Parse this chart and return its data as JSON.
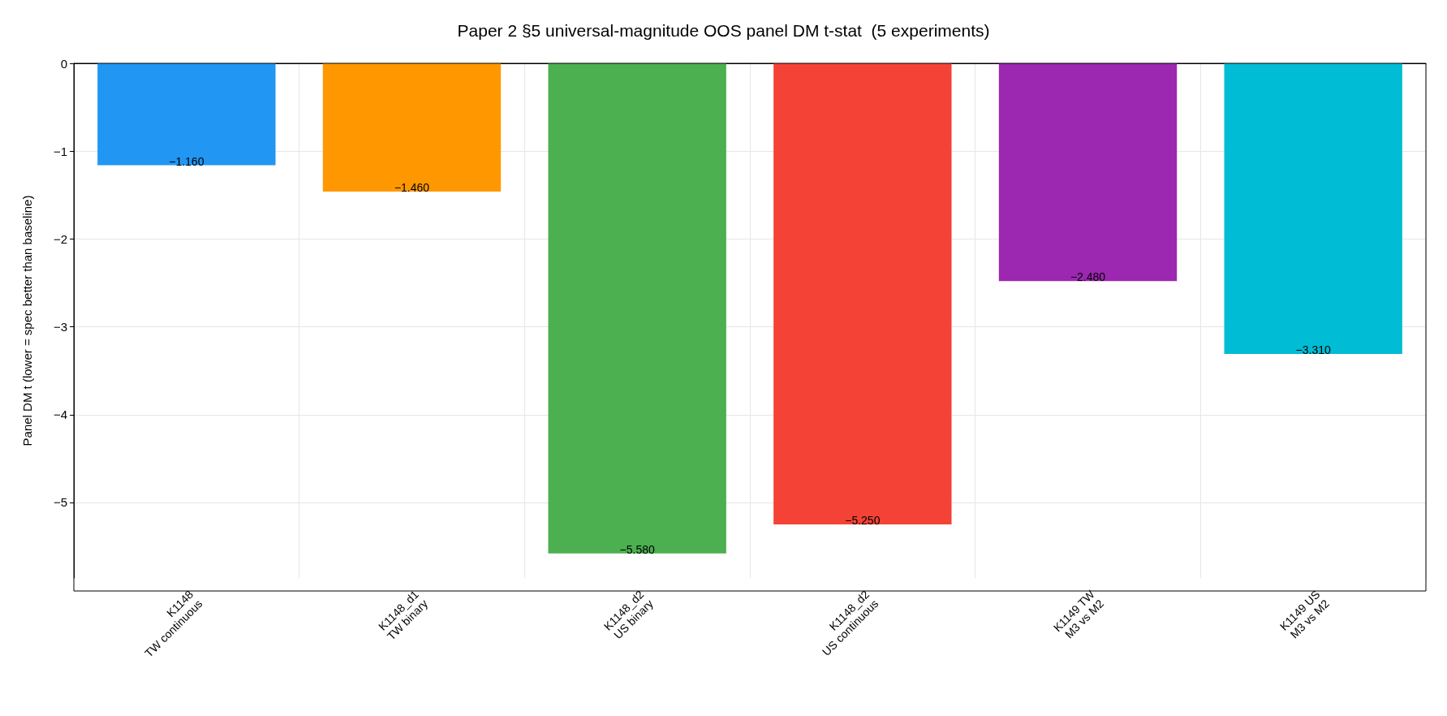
{
  "chart_data": {
    "type": "bar",
    "title": "Paper 2 §5 universal-magnitude OOS panel DM t-stat  (5 experiments)",
    "ylabel": "Panel DM t (lower = spec better than baseline)",
    "categories": [
      "K1148\nTW continuous",
      "K1148_d1\nTW binary",
      "K1148_d2\nUS binary",
      "K1148_d2\nUS continuous",
      "K1149 TW\nM3 vs M2",
      "K1149 US\nM3 vs M2"
    ],
    "values": [
      -1.16,
      -1.46,
      -5.58,
      -5.25,
      -2.48,
      -3.31
    ],
    "colors": [
      "#2196f3",
      "#ff9800",
      "#4caf50",
      "#f44336",
      "#9c27b0",
      "#00bcd4"
    ],
    "value_labels": [
      "−1.160",
      "−1.460",
      "−5.580",
      "−5.250",
      "−2.480",
      "−3.310"
    ],
    "ylim": [
      -5.86,
      0
    ],
    "yticks": [
      {
        "value": -5,
        "label": "−5"
      },
      {
        "value": -4,
        "label": "−4"
      },
      {
        "value": -3,
        "label": "−3"
      },
      {
        "value": -2,
        "label": "−2"
      },
      {
        "value": -1,
        "label": "−1"
      },
      0
    ],
    "grid": true
  }
}
